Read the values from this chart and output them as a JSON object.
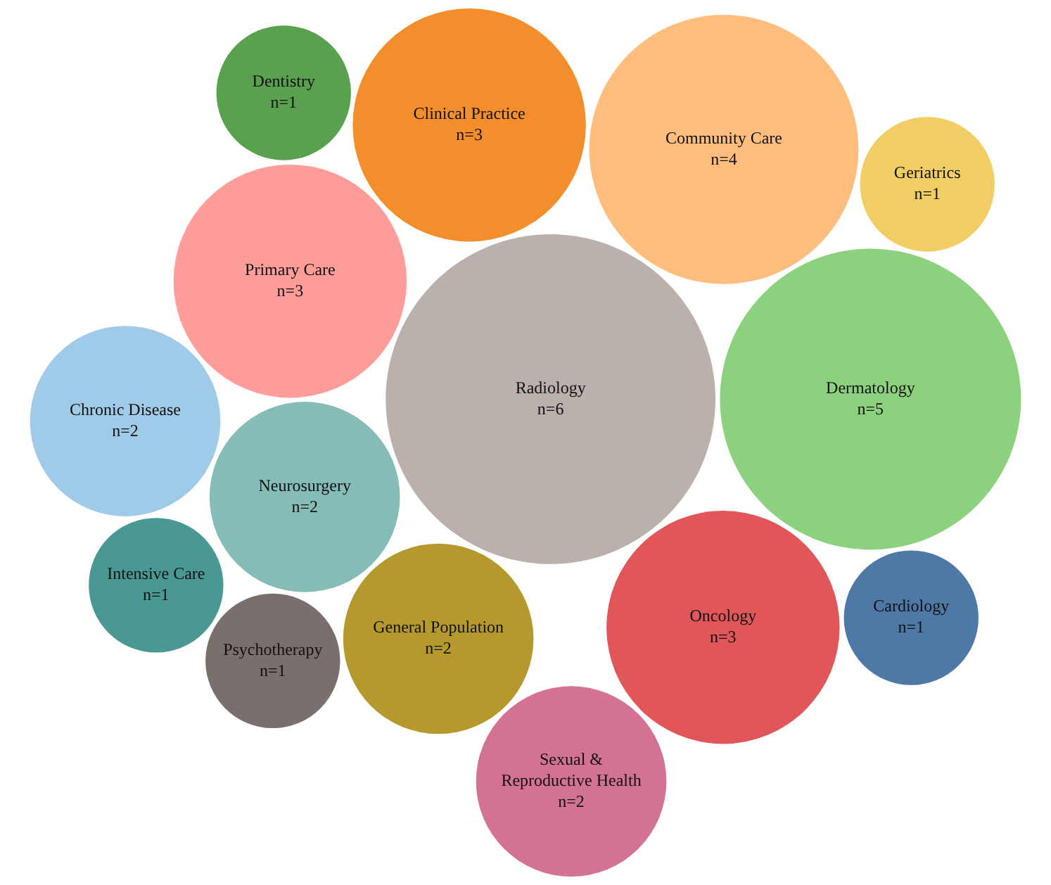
{
  "chart_data": {
    "type": "other",
    "categories": [
      "Radiology",
      "Dermatology",
      "Community Care",
      "Oncology",
      "Clinical Practice",
      "Primary Care",
      "Neurosurgery",
      "General Population",
      "Chronic Disease",
      "Sexual & Reproductive Health",
      "Psychotherapy",
      "Cardiology",
      "Dentistry",
      "Intensive Care",
      "Geriatrics"
    ],
    "values": [
      6,
      5,
      4,
      3,
      3,
      3,
      2,
      2,
      2,
      2,
      1,
      1,
      1,
      1,
      1
    ],
    "value_labels": [
      "n=6",
      "n=5",
      "n=4",
      "n=3",
      "n=3",
      "n=3",
      "n=2",
      "n=2",
      "n=2",
      "n=2",
      "n=1",
      "n=1",
      "n=1",
      "n=1",
      "n=1"
    ],
    "colors": [
      "#bab0ac",
      "#8cd17d",
      "#ffbe7d",
      "#e15759",
      "#f28e2b",
      "#ff9d9a",
      "#86bcb6",
      "#b6992d",
      "#a0cbe8",
      "#d37295",
      "#79706e",
      "#4e79a7",
      "#59a14f",
      "#499894",
      "#f1ce63"
    ]
  }
}
